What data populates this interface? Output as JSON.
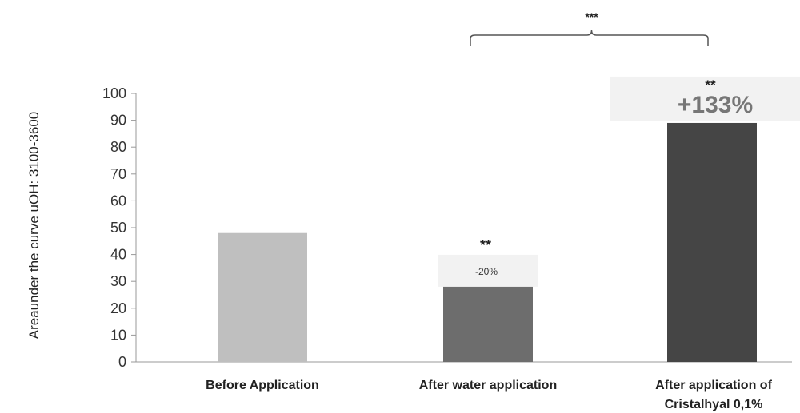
{
  "chart_data": {
    "type": "bar",
    "categories": [
      "Before Application",
      "After water application",
      "After application of Cristalhyal 0,1%"
    ],
    "category_lines": [
      [
        "Before Application"
      ],
      [
        "After water application"
      ],
      [
        "After application of",
        "Cristalhyal 0,1%"
      ]
    ],
    "values": [
      48,
      28,
      89
    ],
    "colors": [
      "#bfbfbf",
      "#6d6d6d",
      "#454545"
    ],
    "ylabel": "Areaunder the  curve uOH: 3100-3600",
    "ylim": [
      0,
      100
    ],
    "yticks": [
      0,
      10,
      20,
      30,
      40,
      50,
      60,
      70,
      80,
      90,
      100
    ],
    "grid": false,
    "annotations": [
      {
        "bar_index": 1,
        "stars": "**",
        "percent": "-20%"
      },
      {
        "bar_index": 2,
        "stars": "**",
        "percent": "+133%"
      }
    ],
    "bracket": {
      "from_bar": 1,
      "to_bar": 2,
      "label": "***"
    }
  }
}
